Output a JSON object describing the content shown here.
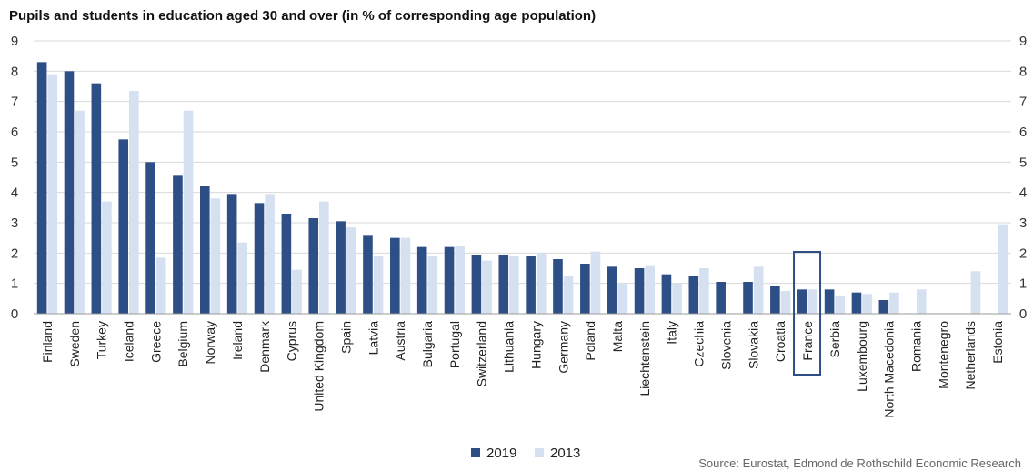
{
  "chart_data": {
    "type": "bar",
    "title": "Pupils and students in education aged 30 and over (in % of corresponding age population)",
    "xlabel": "",
    "ylabel": "",
    "ylim": [
      0,
      9
    ],
    "yticks": [
      0,
      1,
      2,
      3,
      4,
      5,
      6,
      7,
      8,
      9
    ],
    "grid": true,
    "legend_position": "bottom",
    "highlighted_category": "France",
    "categories": [
      "Finland",
      "Sweden",
      "Turkey",
      "Iceland",
      "Greece",
      "Belgium",
      "Norway",
      "Ireland",
      "Denmark",
      "Cyprus",
      "United Kingdom",
      "Spain",
      "Latvia",
      "Austria",
      "Bulgaria",
      "Portugal",
      "Switzerland",
      "Lithuania",
      "Hungary",
      "Germany",
      "Poland",
      "Malta",
      "Liechtenstein",
      "Italy",
      "Czechia",
      "Slovenia",
      "Slovakia",
      "Croatia",
      "France",
      "Serbia",
      "Luxembourg",
      "North Macedonia",
      "Romania",
      "Montenegro",
      "Netherlands",
      "Estonia"
    ],
    "series": [
      {
        "name": "2019",
        "color": "#2e4f86",
        "values": [
          8.3,
          8.0,
          7.6,
          5.75,
          5.0,
          4.55,
          4.2,
          3.95,
          3.65,
          3.3,
          3.15,
          3.05,
          2.6,
          2.5,
          2.2,
          2.2,
          1.95,
          1.95,
          1.9,
          1.8,
          1.65,
          1.55,
          1.5,
          1.3,
          1.25,
          1.05,
          1.05,
          0.9,
          0.8,
          0.8,
          0.7,
          0.45,
          null,
          null,
          null,
          null
        ]
      },
      {
        "name": "2013",
        "color": "#d5e0f0",
        "values": [
          7.9,
          6.7,
          3.7,
          7.35,
          1.85,
          6.7,
          3.8,
          2.35,
          3.95,
          1.45,
          3.7,
          2.85,
          1.9,
          2.5,
          1.9,
          2.25,
          1.75,
          1.9,
          2.0,
          1.25,
          2.05,
          1.0,
          1.6,
          1.0,
          1.5,
          null,
          1.55,
          0.75,
          0.8,
          0.6,
          0.65,
          0.7,
          0.8,
          null,
          1.4,
          2.95
        ]
      }
    ]
  },
  "source_text": "Source: Eurostat, Edmond de Rothschild Economic Research"
}
